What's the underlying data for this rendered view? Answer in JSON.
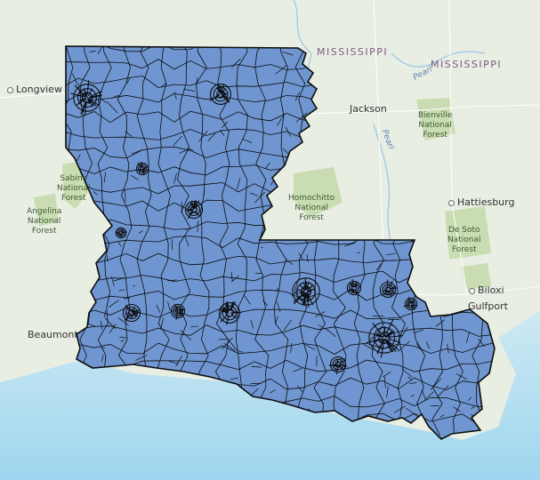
{
  "map": {
    "region": "Louisiana",
    "layer_fill": "#6f96d1",
    "layer_outline": "#0c0c0c",
    "land_color": "#e9eee3",
    "forest_color": "#c9dcb2",
    "water_color": "#bfe3f2",
    "state_labels": [
      {
        "id": "mississippi-1",
        "text": "MISSISSIPPI"
      },
      {
        "id": "mississippi-2",
        "text": "MISSISSIPPI"
      }
    ],
    "cities": [
      {
        "id": "longview",
        "text": "Longview"
      },
      {
        "id": "jackson",
        "text": "Jackson"
      },
      {
        "id": "hattiesburg",
        "text": "Hattiesburg"
      },
      {
        "id": "biloxi",
        "text": "Biloxi"
      },
      {
        "id": "gulfport",
        "text": "Gulfport"
      },
      {
        "id": "beaumont",
        "text": "Beaumont"
      }
    ],
    "forests": [
      {
        "id": "sabine",
        "lines": [
          "Sabine",
          "National",
          "Forest"
        ]
      },
      {
        "id": "angelina",
        "lines": [
          "Angelina",
          "National",
          "Forest"
        ]
      },
      {
        "id": "homochitto",
        "lines": [
          "Homochitto",
          "National",
          "Forest"
        ]
      },
      {
        "id": "bienville",
        "lines": [
          "Bienville",
          "National",
          "Forest"
        ]
      },
      {
        "id": "desoto",
        "lines": [
          "De Soto",
          "National",
          "Forest"
        ]
      }
    ],
    "water_labels": [
      {
        "id": "pearl-1",
        "text": "Pearl"
      },
      {
        "id": "pearl-2",
        "text": "Pearl"
      }
    ]
  }
}
